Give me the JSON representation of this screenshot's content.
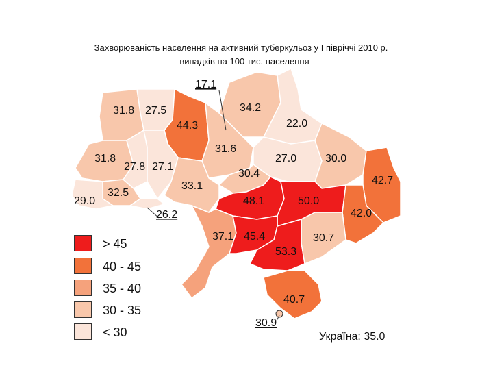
{
  "title_line1": "Захворюваність населення на активний туберкульоз у І півріччі 2010 р.",
  "title_line2": "випадків на 100 тис. населення",
  "colors": {
    "gt45": "#ee1c1c",
    "c40_45": "#f2723a",
    "c35_40": "#f5a27c",
    "c30_35": "#f8c7ab",
    "lt30": "#fbe5da",
    "border": "#ffffff"
  },
  "legend": [
    {
      "label": "> 45",
      "color_key": "gt45"
    },
    {
      "label": "40 - 45",
      "color_key": "c40_45"
    },
    {
      "label": "35 - 40",
      "color_key": "c35_40"
    },
    {
      "label": "30 - 35",
      "color_key": "c30_35"
    },
    {
      "label": "< 30",
      "color_key": "lt30"
    }
  ],
  "ukraine_total": "Україна:  35.0",
  "regions": [
    {
      "value": "31.8",
      "class": "c30_35"
    },
    {
      "value": "27.5",
      "class": "lt30"
    },
    {
      "value": "44.3",
      "class": "c40_45"
    },
    {
      "value": "17.1",
      "class": "lt30"
    },
    {
      "value": "34.2",
      "class": "c30_35"
    },
    {
      "value": "22.0",
      "class": "lt30"
    },
    {
      "value": "31.8",
      "class": "c30_35"
    },
    {
      "value": "27.8",
      "class": "lt30"
    },
    {
      "value": "27.1",
      "class": "lt30"
    },
    {
      "value": "31.6",
      "class": "c30_35"
    },
    {
      "value": "27.0",
      "class": "lt30"
    },
    {
      "value": "30.0",
      "class": "c30_35"
    },
    {
      "value": "30.4",
      "class": "c30_35"
    },
    {
      "value": "42.7",
      "class": "c40_45"
    },
    {
      "value": "33.1",
      "class": "c30_35"
    },
    {
      "value": "32.5",
      "class": "c30_35"
    },
    {
      "value": "29.0",
      "class": "lt30"
    },
    {
      "value": "48.1",
      "class": "gt45"
    },
    {
      "value": "50.0",
      "class": "gt45"
    },
    {
      "value": "26.2",
      "class": "lt30"
    },
    {
      "value": "42.0",
      "class": "c40_45"
    },
    {
      "value": "37.1",
      "class": "c35_40"
    },
    {
      "value": "45.4",
      "class": "gt45"
    },
    {
      "value": "30.7",
      "class": "c30_35"
    },
    {
      "value": "53.3",
      "class": "gt45"
    },
    {
      "value": "40.7",
      "class": "c40_45"
    },
    {
      "value": "30.9",
      "class": "c30_35"
    }
  ]
}
